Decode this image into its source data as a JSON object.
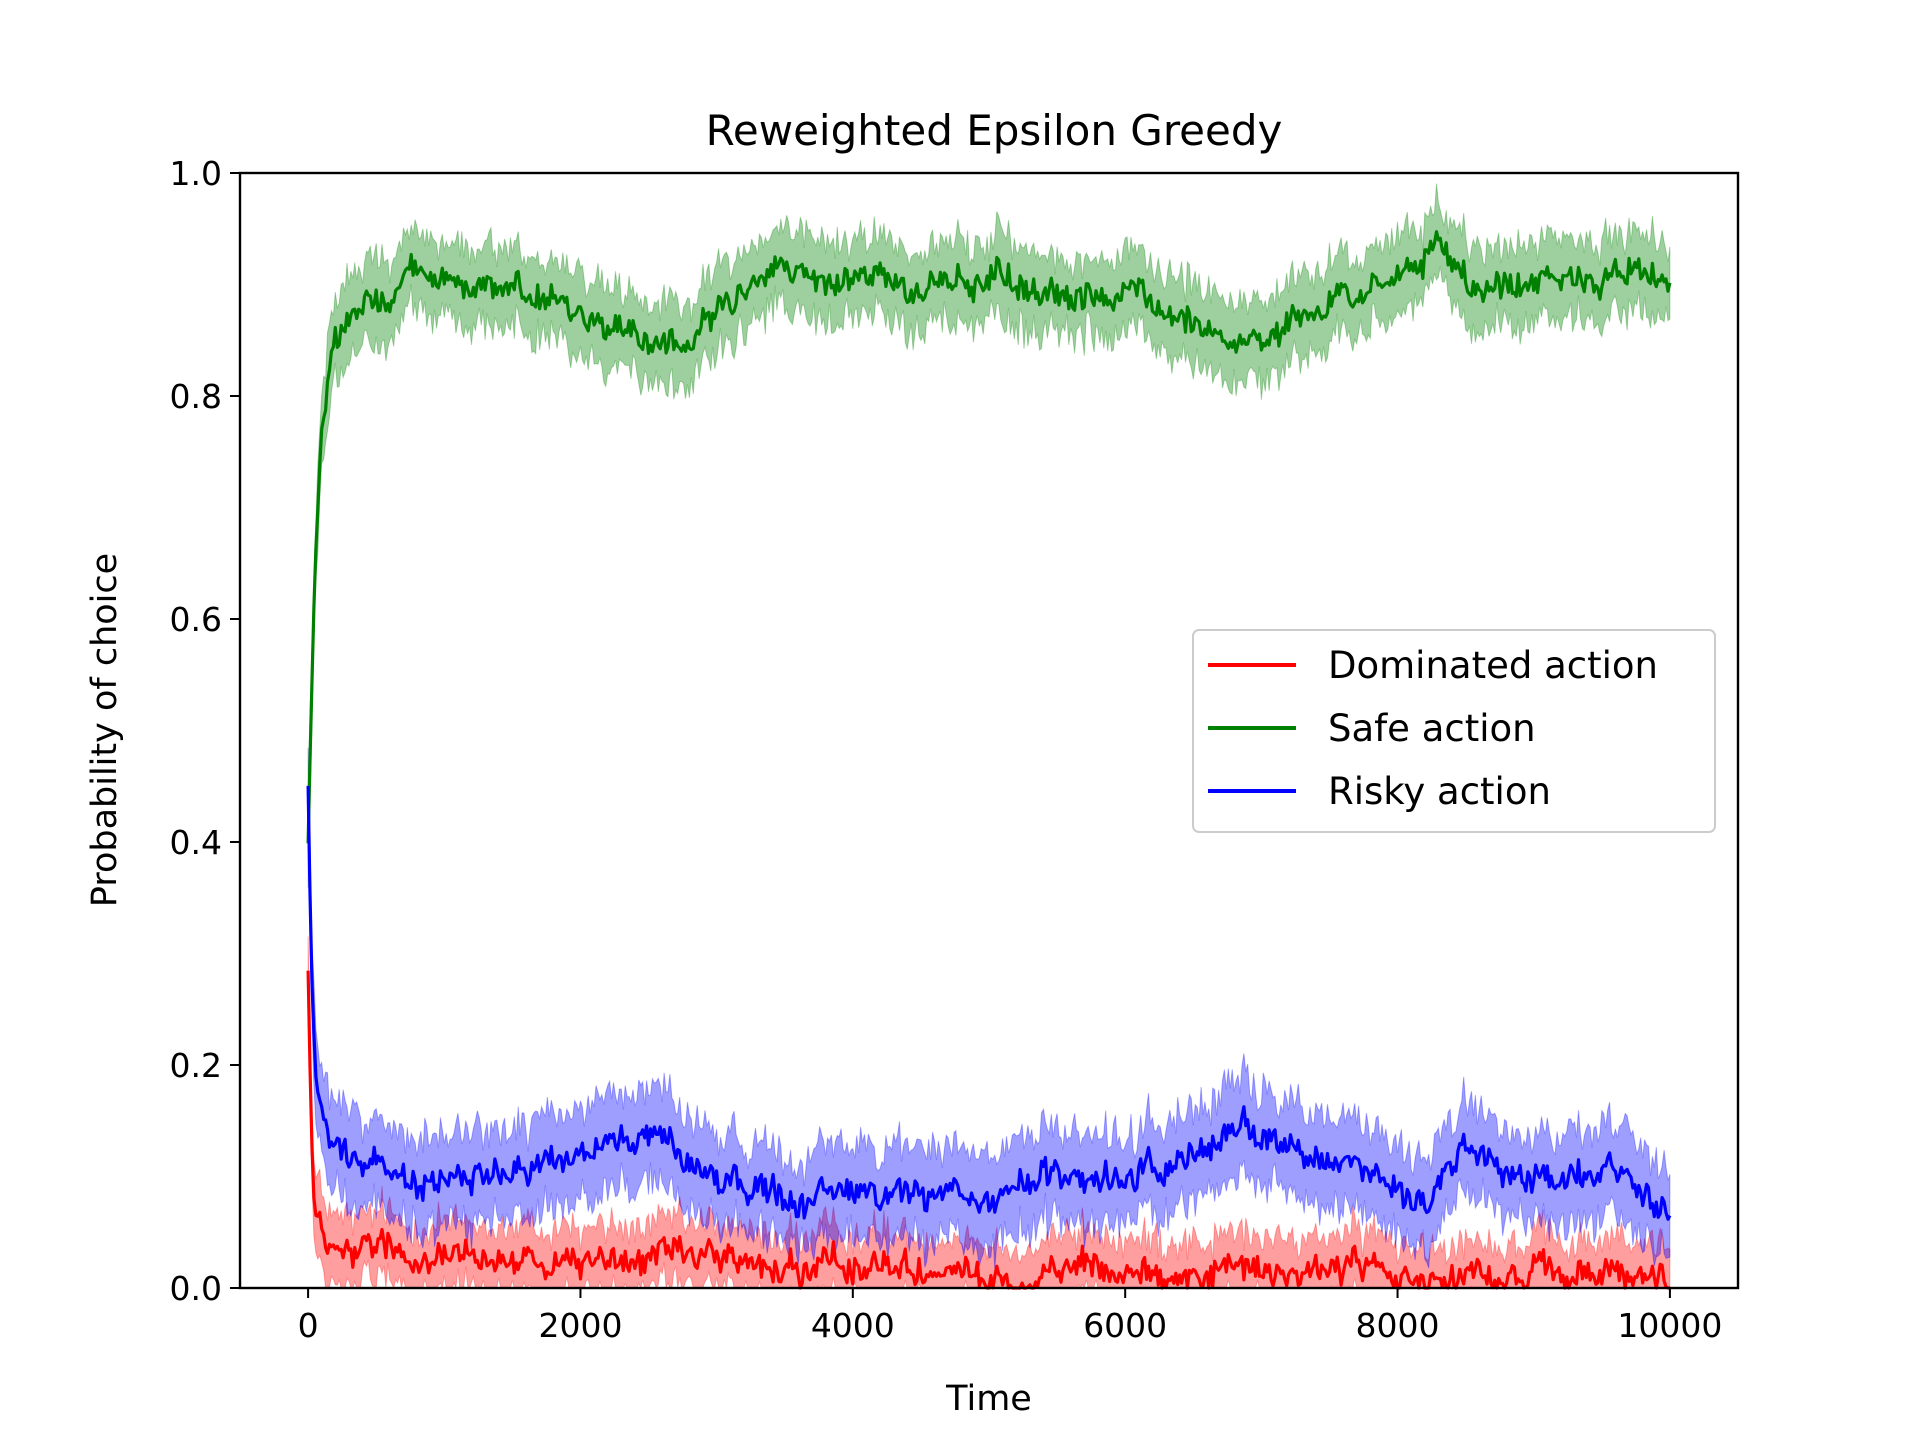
{
  "chart_data": {
    "type": "line",
    "title": "Reweighted Epsilon Greedy",
    "xlabel": "Time",
    "ylabel": "Probability of choice",
    "xlim": [
      -500,
      10500
    ],
    "ylim": [
      0.0,
      1.0
    ],
    "xticks": [
      0,
      2000,
      4000,
      6000,
      8000,
      10000
    ],
    "xtick_labels": [
      "0",
      "2000",
      "4000",
      "6000",
      "8000",
      "10000"
    ],
    "yticks": [
      0.0,
      0.2,
      0.4,
      0.6,
      0.8,
      1.0
    ],
    "ytick_labels": [
      "0.0",
      "0.2",
      "0.4",
      "0.6",
      "0.8",
      "1.0"
    ],
    "grid": false,
    "legend_position": "center-right",
    "series": [
      {
        "name": "Dominated action",
        "color": "#ff0000",
        "band_spread": 0.03,
        "x": [
          0,
          20,
          50,
          100,
          200,
          400,
          700,
          1000,
          1500,
          2000,
          3000,
          4000,
          5000,
          6000,
          7000,
          8000,
          9000,
          10000
        ],
        "values": [
          0.3,
          0.15,
          0.07,
          0.05,
          0.04,
          0.035,
          0.03,
          0.03,
          0.025,
          0.02,
          0.02,
          0.02,
          0.015,
          0.015,
          0.015,
          0.015,
          0.01,
          0.01
        ]
      },
      {
        "name": "Safe action",
        "color": "#008000",
        "band_spread": 0.035,
        "x": [
          0,
          50,
          100,
          200,
          300,
          500,
          800,
          1000,
          1500,
          2000,
          2300,
          2600,
          3000,
          3500,
          4000,
          4500,
          5000,
          5500,
          6000,
          6500,
          6800,
          7000,
          7500,
          8000,
          8300,
          8600,
          9000,
          9500,
          10000
        ],
        "values": [
          0.4,
          0.65,
          0.78,
          0.85,
          0.87,
          0.89,
          0.91,
          0.9,
          0.89,
          0.88,
          0.86,
          0.85,
          0.88,
          0.91,
          0.91,
          0.9,
          0.91,
          0.89,
          0.89,
          0.87,
          0.85,
          0.86,
          0.88,
          0.9,
          0.93,
          0.89,
          0.9,
          0.9,
          0.92
        ]
      },
      {
        "name": "Risky action",
        "color": "#0000ff",
        "band_spread": 0.04,
        "x": [
          0,
          20,
          50,
          100,
          200,
          300,
          500,
          800,
          1000,
          1500,
          2000,
          2300,
          2600,
          3000,
          3500,
          4000,
          4500,
          5000,
          5500,
          6000,
          6500,
          6800,
          7000,
          7500,
          8000,
          8100,
          8500,
          9000,
          9500,
          10000
        ],
        "values": [
          0.45,
          0.3,
          0.2,
          0.15,
          0.13,
          0.12,
          0.11,
          0.09,
          0.1,
          0.1,
          0.12,
          0.14,
          0.14,
          0.1,
          0.08,
          0.09,
          0.09,
          0.08,
          0.1,
          0.1,
          0.12,
          0.14,
          0.13,
          0.11,
          0.1,
          0.07,
          0.12,
          0.1,
          0.1,
          0.08
        ]
      }
    ]
  }
}
